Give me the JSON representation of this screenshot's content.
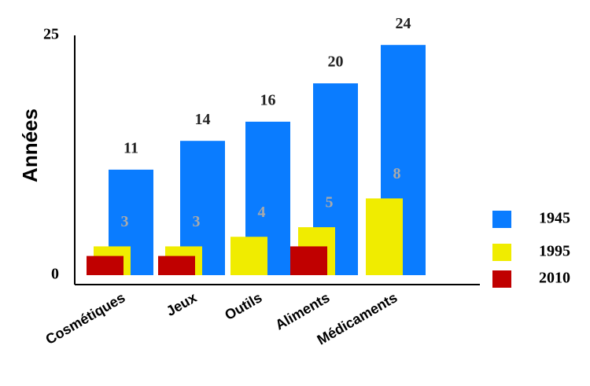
{
  "chart_data": {
    "type": "bar",
    "ylabel": "Années",
    "categories": [
      "Cosmétiques",
      "Jeux",
      "Outils",
      "Aliments",
      "Médicaments"
    ],
    "series": [
      {
        "name": "1945",
        "color": "#0a7cff",
        "values": [
          11,
          14,
          16,
          20,
          24
        ]
      },
      {
        "name": "1995",
        "color": "#f0ec00",
        "values": [
          3,
          3,
          4,
          5,
          8
        ]
      },
      {
        "name": "2010",
        "color": "#c00000",
        "values": [
          2,
          2,
          null,
          3,
          null
        ]
      }
    ],
    "ylim": [
      0,
      25
    ],
    "yticks": [
      0,
      25
    ],
    "legend": "lower right"
  }
}
